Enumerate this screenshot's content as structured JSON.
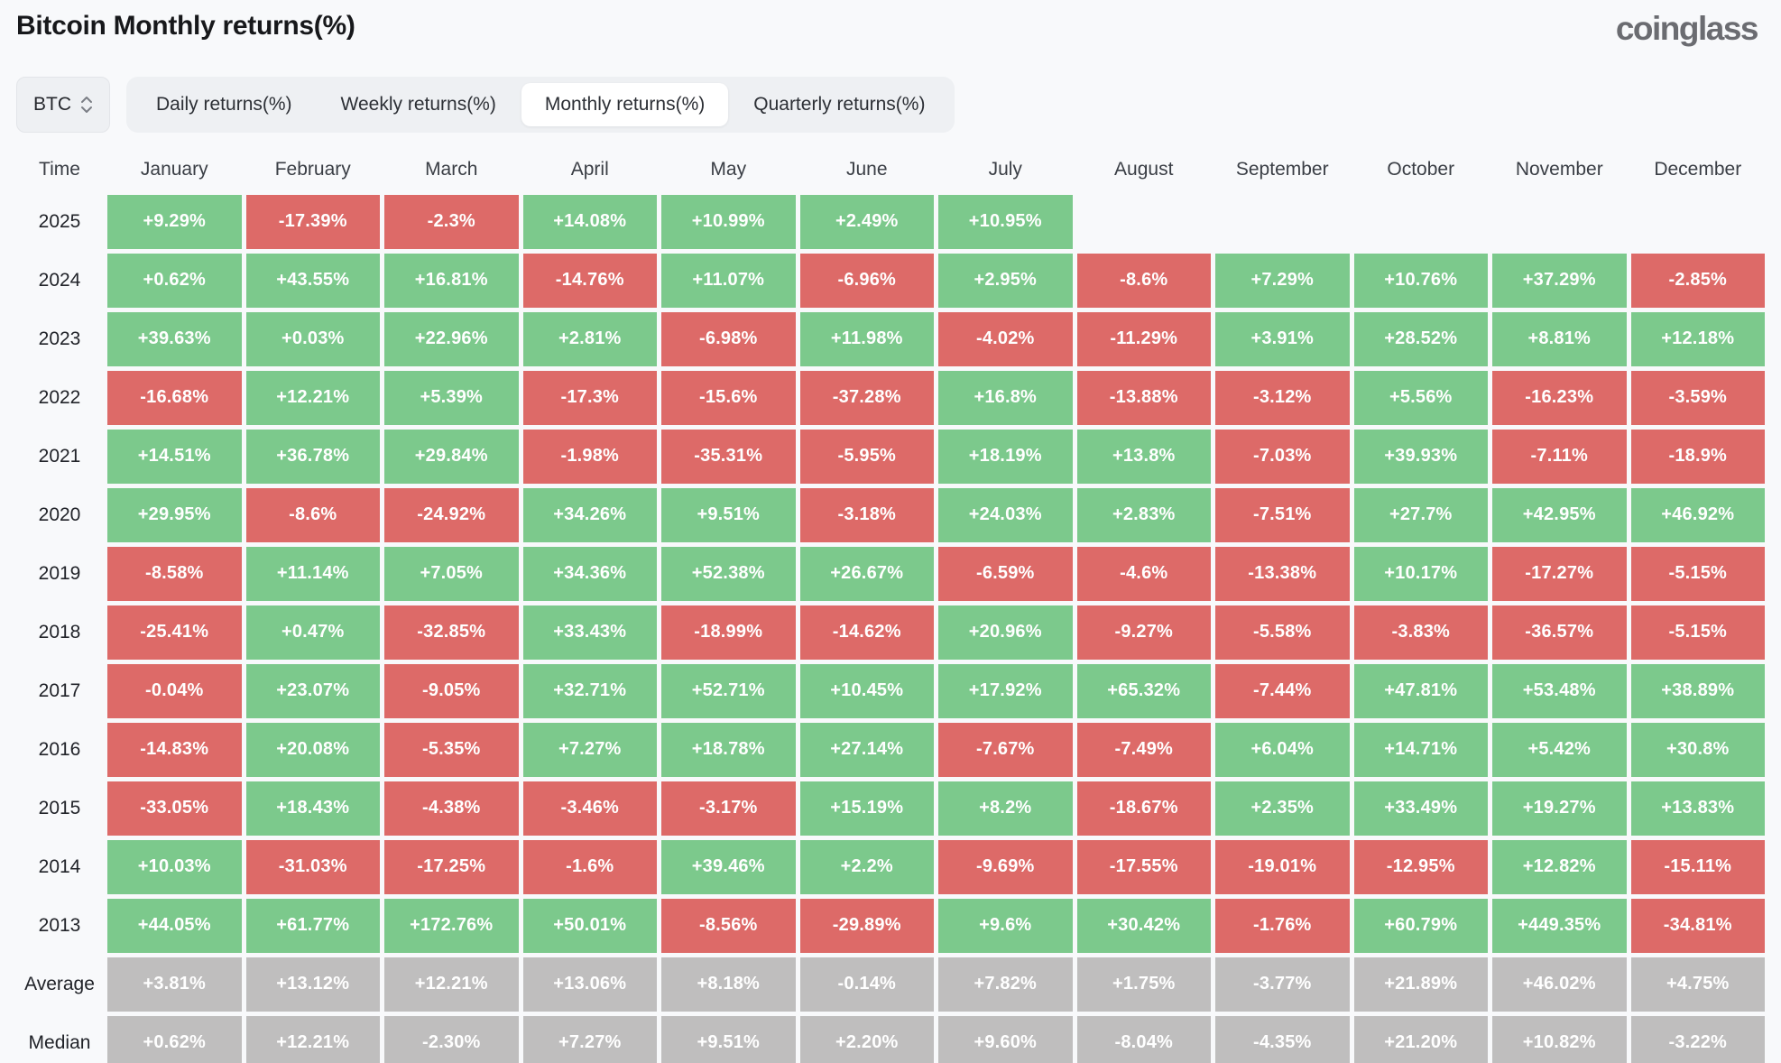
{
  "header": {
    "title": "Bitcoin Monthly returns(%)",
    "logo": "coinglass"
  },
  "controls": {
    "symbol_select": {
      "value": "BTC",
      "icon": "select-arrows-icon"
    },
    "tabs": [
      {
        "label": "Daily returns(%)",
        "active": false
      },
      {
        "label": "Weekly returns(%)",
        "active": false
      },
      {
        "label": "Monthly returns(%)",
        "active": true
      },
      {
        "label": "Quarterly returns(%)",
        "active": false
      }
    ]
  },
  "colors": {
    "positive": "#7cc98c",
    "negative": "#dd6a68",
    "neutral": "#bfbebe"
  },
  "table": {
    "columns": [
      "Time",
      "January",
      "February",
      "March",
      "April",
      "May",
      "June",
      "July",
      "August",
      "September",
      "October",
      "November",
      "December"
    ],
    "rows": [
      {
        "label": "2025",
        "cells": [
          {
            "v": "+9.29%",
            "bg": "positive"
          },
          {
            "v": "-17.39%",
            "bg": "negative"
          },
          {
            "v": "-2.3%",
            "bg": "negative"
          },
          {
            "v": "+14.08%",
            "bg": "positive"
          },
          {
            "v": "+10.99%",
            "bg": "positive"
          },
          {
            "v": "+2.49%",
            "bg": "positive"
          },
          {
            "v": "+10.95%",
            "bg": "positive"
          },
          null,
          null,
          null,
          null,
          null
        ]
      },
      {
        "label": "2024",
        "cells": [
          {
            "v": "+0.62%",
            "bg": "positive"
          },
          {
            "v": "+43.55%",
            "bg": "positive"
          },
          {
            "v": "+16.81%",
            "bg": "positive"
          },
          {
            "v": "-14.76%",
            "bg": "negative"
          },
          {
            "v": "+11.07%",
            "bg": "positive"
          },
          {
            "v": "-6.96%",
            "bg": "negative"
          },
          {
            "v": "+2.95%",
            "bg": "positive"
          },
          {
            "v": "-8.6%",
            "bg": "negative"
          },
          {
            "v": "+7.29%",
            "bg": "positive"
          },
          {
            "v": "+10.76%",
            "bg": "positive"
          },
          {
            "v": "+37.29%",
            "bg": "positive"
          },
          {
            "v": "-2.85%",
            "bg": "negative"
          }
        ]
      },
      {
        "label": "2023",
        "cells": [
          {
            "v": "+39.63%",
            "bg": "positive"
          },
          {
            "v": "+0.03%",
            "bg": "positive"
          },
          {
            "v": "+22.96%",
            "bg": "positive"
          },
          {
            "v": "+2.81%",
            "bg": "positive"
          },
          {
            "v": "-6.98%",
            "bg": "negative"
          },
          {
            "v": "+11.98%",
            "bg": "positive"
          },
          {
            "v": "-4.02%",
            "bg": "negative"
          },
          {
            "v": "-11.29%",
            "bg": "negative"
          },
          {
            "v": "+3.91%",
            "bg": "positive"
          },
          {
            "v": "+28.52%",
            "bg": "positive"
          },
          {
            "v": "+8.81%",
            "bg": "positive"
          },
          {
            "v": "+12.18%",
            "bg": "positive"
          }
        ]
      },
      {
        "label": "2022",
        "cells": [
          {
            "v": "-16.68%",
            "bg": "negative"
          },
          {
            "v": "+12.21%",
            "bg": "positive"
          },
          {
            "v": "+5.39%",
            "bg": "positive"
          },
          {
            "v": "-17.3%",
            "bg": "negative"
          },
          {
            "v": "-15.6%",
            "bg": "negative"
          },
          {
            "v": "-37.28%",
            "bg": "negative"
          },
          {
            "v": "+16.8%",
            "bg": "positive"
          },
          {
            "v": "-13.88%",
            "bg": "negative"
          },
          {
            "v": "-3.12%",
            "bg": "negative"
          },
          {
            "v": "+5.56%",
            "bg": "positive"
          },
          {
            "v": "-16.23%",
            "bg": "negative"
          },
          {
            "v": "-3.59%",
            "bg": "negative"
          }
        ]
      },
      {
        "label": "2021",
        "cells": [
          {
            "v": "+14.51%",
            "bg": "positive"
          },
          {
            "v": "+36.78%",
            "bg": "positive"
          },
          {
            "v": "+29.84%",
            "bg": "positive"
          },
          {
            "v": "-1.98%",
            "bg": "negative"
          },
          {
            "v": "-35.31%",
            "bg": "negative"
          },
          {
            "v": "-5.95%",
            "bg": "negative"
          },
          {
            "v": "+18.19%",
            "bg": "positive"
          },
          {
            "v": "+13.8%",
            "bg": "positive"
          },
          {
            "v": "-7.03%",
            "bg": "negative"
          },
          {
            "v": "+39.93%",
            "bg": "positive"
          },
          {
            "v": "-7.11%",
            "bg": "negative"
          },
          {
            "v": "-18.9%",
            "bg": "negative"
          }
        ]
      },
      {
        "label": "2020",
        "cells": [
          {
            "v": "+29.95%",
            "bg": "positive"
          },
          {
            "v": "-8.6%",
            "bg": "negative"
          },
          {
            "v": "-24.92%",
            "bg": "negative"
          },
          {
            "v": "+34.26%",
            "bg": "positive"
          },
          {
            "v": "+9.51%",
            "bg": "positive"
          },
          {
            "v": "-3.18%",
            "bg": "negative"
          },
          {
            "v": "+24.03%",
            "bg": "positive"
          },
          {
            "v": "+2.83%",
            "bg": "positive"
          },
          {
            "v": "-7.51%",
            "bg": "negative"
          },
          {
            "v": "+27.7%",
            "bg": "positive"
          },
          {
            "v": "+42.95%",
            "bg": "positive"
          },
          {
            "v": "+46.92%",
            "bg": "positive"
          }
        ]
      },
      {
        "label": "2019",
        "cells": [
          {
            "v": "-8.58%",
            "bg": "negative"
          },
          {
            "v": "+11.14%",
            "bg": "positive"
          },
          {
            "v": "+7.05%",
            "bg": "positive"
          },
          {
            "v": "+34.36%",
            "bg": "positive"
          },
          {
            "v": "+52.38%",
            "bg": "positive"
          },
          {
            "v": "+26.67%",
            "bg": "positive"
          },
          {
            "v": "-6.59%",
            "bg": "negative"
          },
          {
            "v": "-4.6%",
            "bg": "negative"
          },
          {
            "v": "-13.38%",
            "bg": "negative"
          },
          {
            "v": "+10.17%",
            "bg": "positive"
          },
          {
            "v": "-17.27%",
            "bg": "negative"
          },
          {
            "v": "-5.15%",
            "bg": "negative"
          }
        ]
      },
      {
        "label": "2018",
        "cells": [
          {
            "v": "-25.41%",
            "bg": "negative"
          },
          {
            "v": "+0.47%",
            "bg": "positive"
          },
          {
            "v": "-32.85%",
            "bg": "negative"
          },
          {
            "v": "+33.43%",
            "bg": "positive"
          },
          {
            "v": "-18.99%",
            "bg": "negative"
          },
          {
            "v": "-14.62%",
            "bg": "negative"
          },
          {
            "v": "+20.96%",
            "bg": "positive"
          },
          {
            "v": "-9.27%",
            "bg": "negative"
          },
          {
            "v": "-5.58%",
            "bg": "negative"
          },
          {
            "v": "-3.83%",
            "bg": "negative"
          },
          {
            "v": "-36.57%",
            "bg": "negative"
          },
          {
            "v": "-5.15%",
            "bg": "negative"
          }
        ]
      },
      {
        "label": "2017",
        "cells": [
          {
            "v": "-0.04%",
            "bg": "negative"
          },
          {
            "v": "+23.07%",
            "bg": "positive"
          },
          {
            "v": "-9.05%",
            "bg": "negative"
          },
          {
            "v": "+32.71%",
            "bg": "positive"
          },
          {
            "v": "+52.71%",
            "bg": "positive"
          },
          {
            "v": "+10.45%",
            "bg": "positive"
          },
          {
            "v": "+17.92%",
            "bg": "positive"
          },
          {
            "v": "+65.32%",
            "bg": "positive"
          },
          {
            "v": "-7.44%",
            "bg": "negative"
          },
          {
            "v": "+47.81%",
            "bg": "positive"
          },
          {
            "v": "+53.48%",
            "bg": "positive"
          },
          {
            "v": "+38.89%",
            "bg": "positive"
          }
        ]
      },
      {
        "label": "2016",
        "cells": [
          {
            "v": "-14.83%",
            "bg": "negative"
          },
          {
            "v": "+20.08%",
            "bg": "positive"
          },
          {
            "v": "-5.35%",
            "bg": "negative"
          },
          {
            "v": "+7.27%",
            "bg": "positive"
          },
          {
            "v": "+18.78%",
            "bg": "positive"
          },
          {
            "v": "+27.14%",
            "bg": "positive"
          },
          {
            "v": "-7.67%",
            "bg": "negative"
          },
          {
            "v": "-7.49%",
            "bg": "negative"
          },
          {
            "v": "+6.04%",
            "bg": "positive"
          },
          {
            "v": "+14.71%",
            "bg": "positive"
          },
          {
            "v": "+5.42%",
            "bg": "positive"
          },
          {
            "v": "+30.8%",
            "bg": "positive"
          }
        ]
      },
      {
        "label": "2015",
        "cells": [
          {
            "v": "-33.05%",
            "bg": "negative"
          },
          {
            "v": "+18.43%",
            "bg": "positive"
          },
          {
            "v": "-4.38%",
            "bg": "negative"
          },
          {
            "v": "-3.46%",
            "bg": "negative"
          },
          {
            "v": "-3.17%",
            "bg": "negative"
          },
          {
            "v": "+15.19%",
            "bg": "positive"
          },
          {
            "v": "+8.2%",
            "bg": "positive"
          },
          {
            "v": "-18.67%",
            "bg": "negative"
          },
          {
            "v": "+2.35%",
            "bg": "positive"
          },
          {
            "v": "+33.49%",
            "bg": "positive"
          },
          {
            "v": "+19.27%",
            "bg": "positive"
          },
          {
            "v": "+13.83%",
            "bg": "positive"
          }
        ]
      },
      {
        "label": "2014",
        "cells": [
          {
            "v": "+10.03%",
            "bg": "positive"
          },
          {
            "v": "-31.03%",
            "bg": "negative"
          },
          {
            "v": "-17.25%",
            "bg": "negative"
          },
          {
            "v": "-1.6%",
            "bg": "negative"
          },
          {
            "v": "+39.46%",
            "bg": "positive"
          },
          {
            "v": "+2.2%",
            "bg": "positive"
          },
          {
            "v": "-9.69%",
            "bg": "negative"
          },
          {
            "v": "-17.55%",
            "bg": "negative"
          },
          {
            "v": "-19.01%",
            "bg": "negative"
          },
          {
            "v": "-12.95%",
            "bg": "negative"
          },
          {
            "v": "+12.82%",
            "bg": "positive"
          },
          {
            "v": "-15.11%",
            "bg": "negative"
          }
        ]
      },
      {
        "label": "2013",
        "cells": [
          {
            "v": "+44.05%",
            "bg": "positive"
          },
          {
            "v": "+61.77%",
            "bg": "positive"
          },
          {
            "v": "+172.76%",
            "bg": "positive"
          },
          {
            "v": "+50.01%",
            "bg": "positive"
          },
          {
            "v": "-8.56%",
            "bg": "negative"
          },
          {
            "v": "-29.89%",
            "bg": "negative"
          },
          {
            "v": "+9.6%",
            "bg": "positive"
          },
          {
            "v": "+30.42%",
            "bg": "positive"
          },
          {
            "v": "-1.76%",
            "bg": "negative"
          },
          {
            "v": "+60.79%",
            "bg": "positive"
          },
          {
            "v": "+449.35%",
            "bg": "positive"
          },
          {
            "v": "-34.81%",
            "bg": "negative"
          }
        ]
      },
      {
        "label": "Average",
        "cells": [
          {
            "v": "+3.81%",
            "bg": "neutral"
          },
          {
            "v": "+13.12%",
            "bg": "neutral"
          },
          {
            "v": "+12.21%",
            "bg": "neutral"
          },
          {
            "v": "+13.06%",
            "bg": "neutral"
          },
          {
            "v": "+8.18%",
            "bg": "neutral"
          },
          {
            "v": "-0.14%",
            "bg": "neutral"
          },
          {
            "v": "+7.82%",
            "bg": "neutral"
          },
          {
            "v": "+1.75%",
            "bg": "neutral"
          },
          {
            "v": "-3.77%",
            "bg": "neutral"
          },
          {
            "v": "+21.89%",
            "bg": "neutral"
          },
          {
            "v": "+46.02%",
            "bg": "neutral"
          },
          {
            "v": "+4.75%",
            "bg": "neutral"
          }
        ]
      },
      {
        "label": "Median",
        "cells": [
          {
            "v": "+0.62%",
            "bg": "neutral"
          },
          {
            "v": "+12.21%",
            "bg": "neutral"
          },
          {
            "v": "-2.30%",
            "bg": "neutral"
          },
          {
            "v": "+7.27%",
            "bg": "neutral"
          },
          {
            "v": "+9.51%",
            "bg": "neutral"
          },
          {
            "v": "+2.20%",
            "bg": "neutral"
          },
          {
            "v": "+9.60%",
            "bg": "neutral"
          },
          {
            "v": "-8.04%",
            "bg": "neutral"
          },
          {
            "v": "-4.35%",
            "bg": "neutral"
          },
          {
            "v": "+21.20%",
            "bg": "neutral"
          },
          {
            "v": "+10.82%",
            "bg": "neutral"
          },
          {
            "v": "-3.22%",
            "bg": "neutral"
          }
        ]
      }
    ]
  }
}
